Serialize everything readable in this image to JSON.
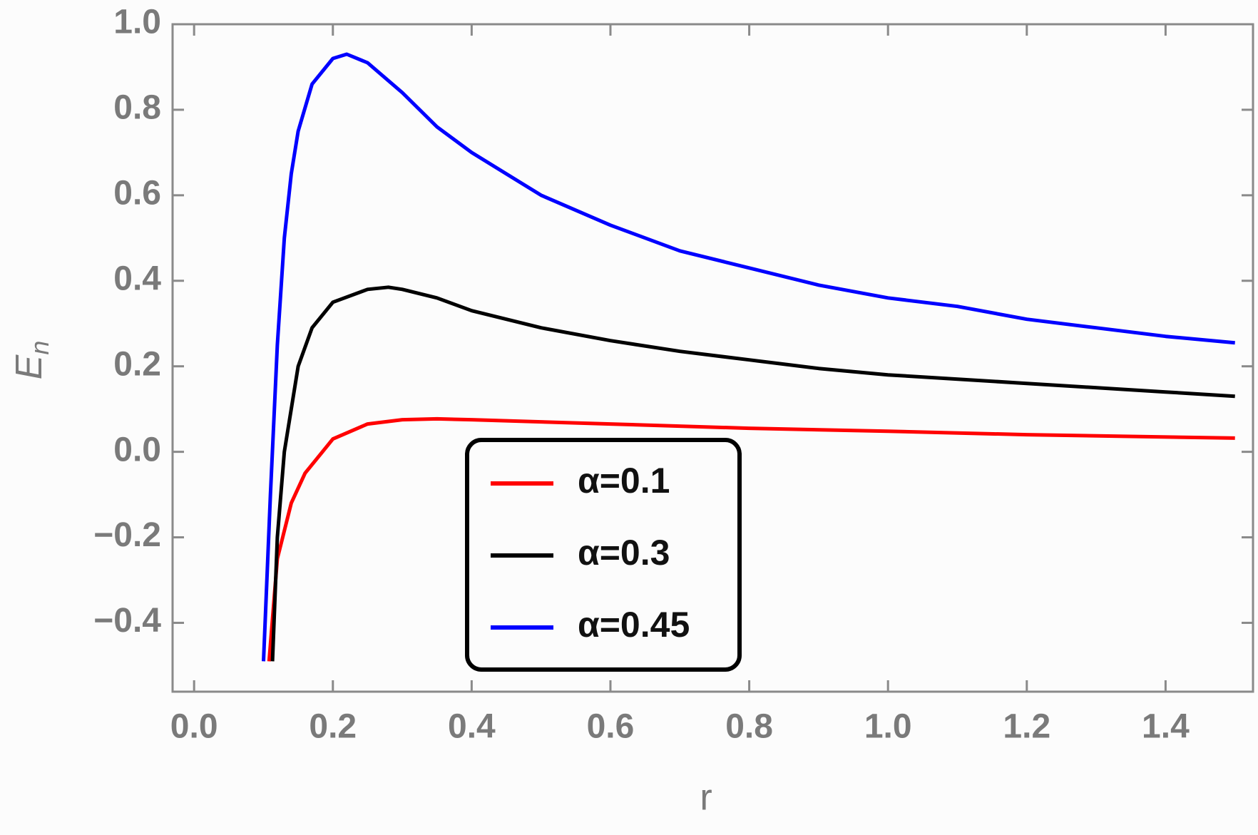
{
  "chart_data": {
    "type": "line",
    "xlabel": "r",
    "ylabel": "E",
    "ylabel_subscript": "n",
    "xlim": [
      -0.031,
      1.526
    ],
    "ylim": [
      -0.561,
      1.0
    ],
    "xticks": [
      {
        "value": 0,
        "label": "0.0"
      },
      0.2,
      0.4,
      0.6,
      0.8,
      {
        "value": 1,
        "label": "1.0"
      },
      1.2,
      1.4
    ],
    "yticks": [
      {
        "value": -0.4,
        "label": "−0.4"
      },
      {
        "value": -0.2,
        "label": "−0.2"
      },
      {
        "value": 0,
        "label": "0.0"
      },
      0.2,
      0.4,
      0.6,
      0.8,
      {
        "value": 1,
        "label": "1.0"
      }
    ],
    "legend": "lower-center",
    "series": [
      {
        "name": "α=0.1",
        "color": "#ff0000",
        "x": [
          0.108,
          0.12,
          0.14,
          0.16,
          0.2,
          0.25,
          0.3,
          0.35,
          0.4,
          0.5,
          0.6,
          0.8,
          1.0,
          1.2,
          1.5
        ],
        "values": [
          -0.49,
          -0.25,
          -0.12,
          -0.05,
          0.03,
          0.065,
          0.075,
          0.077,
          0.075,
          0.07,
          0.065,
          0.055,
          0.048,
          0.04,
          0.032
        ]
      },
      {
        "name": "α=0.3",
        "color": "#000000",
        "x": [
          0.113,
          0.12,
          0.13,
          0.15,
          0.17,
          0.2,
          0.25,
          0.28,
          0.3,
          0.35,
          0.4,
          0.5,
          0.6,
          0.7,
          0.8,
          0.9,
          1.0,
          1.2,
          1.4,
          1.5
        ],
        "values": [
          -0.49,
          -0.2,
          0.0,
          0.2,
          0.29,
          0.35,
          0.38,
          0.385,
          0.38,
          0.36,
          0.33,
          0.29,
          0.26,
          0.235,
          0.215,
          0.195,
          0.18,
          0.16,
          0.14,
          0.13
        ]
      },
      {
        "name": "α=0.45",
        "color": "#0000ff",
        "x": [
          0.1,
          0.11,
          0.12,
          0.13,
          0.14,
          0.15,
          0.17,
          0.2,
          0.22,
          0.25,
          0.3,
          0.35,
          0.4,
          0.5,
          0.6,
          0.7,
          0.8,
          0.9,
          1.0,
          1.1,
          1.2,
          1.3,
          1.4,
          1.5
        ],
        "values": [
          -0.49,
          -0.1,
          0.25,
          0.5,
          0.65,
          0.75,
          0.86,
          0.92,
          0.93,
          0.91,
          0.84,
          0.76,
          0.7,
          0.6,
          0.53,
          0.47,
          0.43,
          0.39,
          0.36,
          0.34,
          0.31,
          0.29,
          0.27,
          0.255
        ]
      }
    ]
  }
}
